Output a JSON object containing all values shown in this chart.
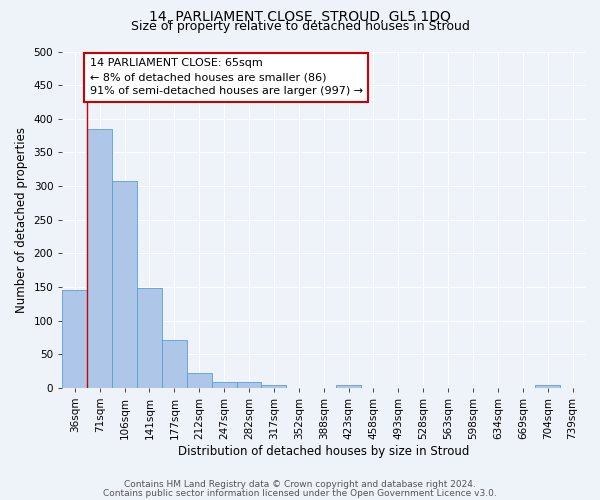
{
  "title": "14, PARLIAMENT CLOSE, STROUD, GL5 1DQ",
  "subtitle": "Size of property relative to detached houses in Stroud",
  "xlabel": "Distribution of detached houses by size in Stroud",
  "ylabel": "Number of detached properties",
  "footnote1": "Contains HM Land Registry data © Crown copyright and database right 2024.",
  "footnote2": "Contains public sector information licensed under the Open Government Licence v3.0.",
  "categories": [
    "36sqm",
    "71sqm",
    "106sqm",
    "141sqm",
    "177sqm",
    "212sqm",
    "247sqm",
    "282sqm",
    "317sqm",
    "352sqm",
    "388sqm",
    "423sqm",
    "458sqm",
    "493sqm",
    "528sqm",
    "563sqm",
    "598sqm",
    "634sqm",
    "669sqm",
    "704sqm",
    "739sqm"
  ],
  "values": [
    145,
    385,
    308,
    148,
    71,
    22,
    9,
    9,
    4,
    0,
    0,
    4,
    0,
    0,
    0,
    0,
    0,
    0,
    0,
    4,
    0
  ],
  "bar_color": "#aec6e8",
  "bar_edge_color": "#5a9fd4",
  "vline_x": 0.5,
  "vline_color": "#cc0000",
  "annotation_box_text": "14 PARLIAMENT CLOSE: 65sqm\n← 8% of detached houses are smaller (86)\n91% of semi-detached houses are larger (997) →",
  "annotation_box_color": "#cc0000",
  "annotation_fill": "white",
  "ylim": [
    0,
    500
  ],
  "yticks": [
    0,
    50,
    100,
    150,
    200,
    250,
    300,
    350,
    400,
    450,
    500
  ],
  "background_color": "#eef2f9",
  "grid_color": "#ffffff",
  "title_fontsize": 10,
  "subtitle_fontsize": 9,
  "axis_label_fontsize": 8.5,
  "tick_fontsize": 7.5,
  "annotation_fontsize": 8,
  "footnote_fontsize": 6.5
}
